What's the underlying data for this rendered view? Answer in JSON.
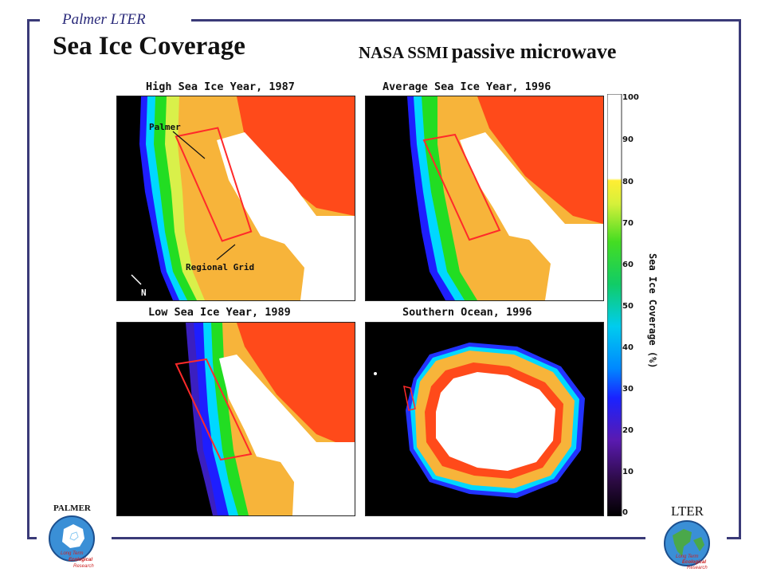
{
  "header": {
    "brand": "Palmer LTER",
    "title": "Sea Ice Coverage",
    "subtitle_a": "NASA SSMI",
    "subtitle_b": "passive microwave"
  },
  "panels": {
    "top_left_title": "High Sea Ice Year, 1987",
    "top_right_title": "Average Sea Ice Year, 1996",
    "bottom_left_title": "Low Sea Ice Year, 1989",
    "bottom_right_title": "Southern Ocean, 1996"
  },
  "annotations": {
    "palmer": "Palmer",
    "regional_grid": "Regional Grid",
    "north": "N"
  },
  "colorbar": {
    "label": "Sea Ice Coverage (%)",
    "ticks": [
      "100",
      "90",
      "80",
      "70",
      "60",
      "50",
      "40",
      "30",
      "20",
      "10",
      "0"
    ]
  },
  "logos": {
    "left_top_text": "PALMER",
    "left_circle_text_1": "Long Term",
    "left_circle_text_2": "Ecological",
    "left_circle_text_3": "Research",
    "right_top_text": "LTER",
    "right_circle_text_1": "Long Term",
    "right_circle_text_2": "Ecological",
    "right_circle_text_3": "Research"
  }
}
